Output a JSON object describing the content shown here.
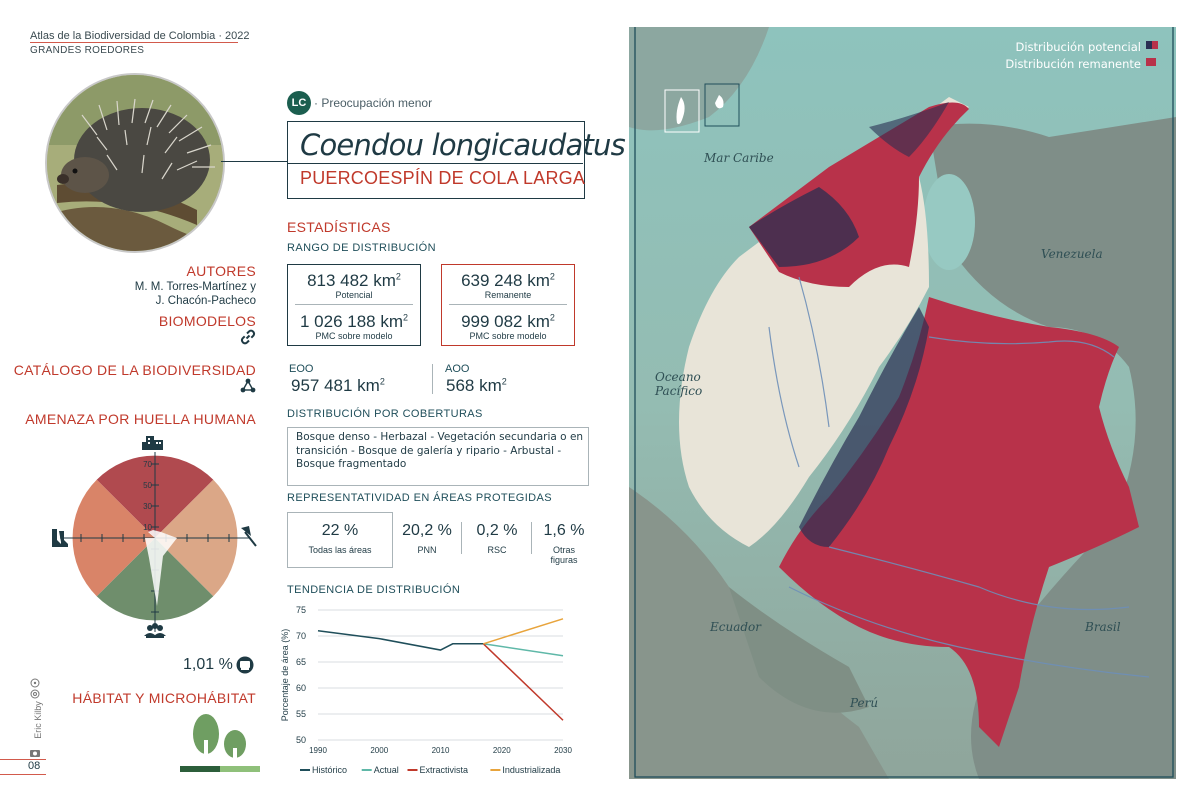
{
  "header": {
    "title": "Atlas de la Biodiversidad de Colombia  ·  2022",
    "subtitle": "GRANDES ROEDORES"
  },
  "status": {
    "code": "LC",
    "label": "· Preocupación menor"
  },
  "species": {
    "scientific": "Coendou longicaudatus",
    "common": "PUERCOESPÍN DE COLA LARGA"
  },
  "left": {
    "authors_title": "AUTORES",
    "authors_line1": "M. M. Torres-Martínez y",
    "authors_line2": "J. Chacón-Pacheco",
    "biomodelos": "BIOMODELOS",
    "catalogo": "CATÁLOGO DE LA BIODIVERSIDAD",
    "amenaza": "AMENAZA POR HUELLA HUMANA",
    "ticks": [
      "70",
      "50",
      "30",
      "10"
    ],
    "footprint_value": "1,01 %",
    "habitat": "HÁBITAT Y MICROHÁBITAT",
    "credit": "Eric Kilby",
    "page": "08"
  },
  "stats": {
    "title": "ESTADÍSTICAS",
    "range_title": "RANGO DE DISTRIBUCIÓN",
    "potencial_value": "813 482 km",
    "potencial_label": "Potencial",
    "pmc_model_value": "1 026 188 km",
    "pmc_model_label": "PMC sobre modelo",
    "remanente_value": "639 248 km",
    "remanente_label": "Remanente",
    "pmc_model2_value": "999 082 km",
    "pmc_model2_label": "PMC sobre modelo",
    "sup": "2",
    "eoo_label": "EOO",
    "eoo_value": "957 481 km",
    "aoo_label": "AOO",
    "aoo_value": "568 km"
  },
  "coverage": {
    "title": "DISTRIBUCIÓN POR COBERTURAS",
    "text": "Bosque denso - Herbazal - Vegetación secundaria o en transición - Bosque de galería y ripario - Arbustal - Bosque fragmentado"
  },
  "protected": {
    "title": "REPRESENTATIVIDAD EN ÁREAS PROTEGIDAS",
    "items": [
      {
        "value": "22 %",
        "label": "Todas las áreas"
      },
      {
        "value": "20,2 %",
        "label": "PNN"
      },
      {
        "value": "0,2 %",
        "label": "RSC"
      },
      {
        "value": "1,6 %",
        "label": "Otras",
        "label2": "figuras"
      }
    ]
  },
  "trend": {
    "title": "TENDENCIA DE DISTRIBUCIÓN"
  },
  "chart_data": {
    "type": "line",
    "title": "",
    "xlabel": "",
    "ylabel": "Porcentaje de área (%)",
    "xlim": [
      1990,
      2030
    ],
    "ylim": [
      50,
      75
    ],
    "xticks": [
      1990,
      2000,
      2010,
      2020,
      2030
    ],
    "yticks": [
      50,
      55,
      60,
      65,
      70,
      75
    ],
    "grid": "horizontal",
    "legend": "bottom",
    "series": [
      {
        "name": "Histórico",
        "color": "#1f4e5a",
        "x": [
          1990,
          2000,
          2010,
          2012,
          2017
        ],
        "y": [
          71.0,
          69.5,
          67.3,
          68.5,
          68.5
        ]
      },
      {
        "name": "Actual",
        "color": "#5fb8a8",
        "x": [
          2017,
          2030
        ],
        "y": [
          68.5,
          66.2
        ]
      },
      {
        "name": "Extractivista",
        "color": "#c0392b",
        "x": [
          2017,
          2030
        ],
        "y": [
          68.5,
          53.8
        ]
      },
      {
        "name": "Industrializada",
        "color": "#e8a43c",
        "x": [
          2017,
          2030
        ],
        "y": [
          68.5,
          73.3
        ]
      }
    ]
  },
  "map": {
    "legend_potencial": "Distribución potencial",
    "legend_remanente": "Distribución remanente",
    "labels": {
      "caribe": "Mar Caribe",
      "venezuela": "Venezuela",
      "oceano1": "Oceano",
      "oceano2": "Pacífico",
      "ecuador": "Ecuador",
      "brasil": "Brasil",
      "peru": "Perú"
    },
    "colors": {
      "remanente": "#b8324a",
      "potencial": "#2a2f52",
      "land": "#8f9b93",
      "sea": "#8fc1bd"
    }
  },
  "radar": {
    "colors": {
      "top": "#b04a4f",
      "left": "#d98468",
      "right": "#dba787",
      "bottom": "#6f8e6c"
    }
  }
}
